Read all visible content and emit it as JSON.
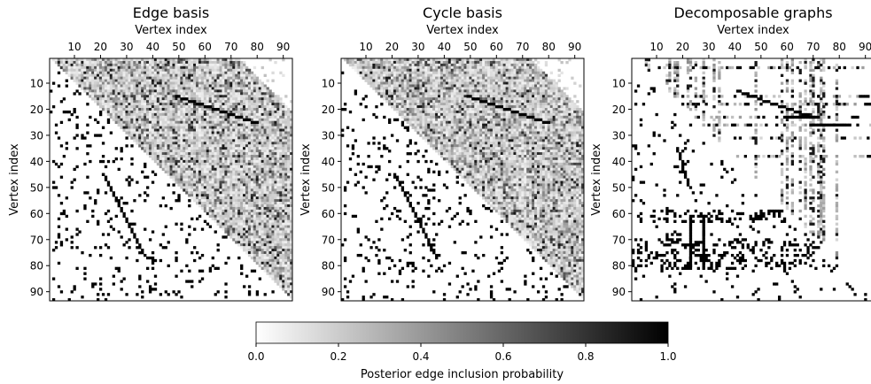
{
  "chart_data": {
    "type": "heatmap",
    "panels": [
      {
        "title": "Edge basis",
        "xlabel": "Vertex index",
        "ylabel": "Vertex index",
        "upper_triangle_pattern": "dense light-to-mid gray posterior probabilities with a dark near-diagonal chain",
        "lower_triangle_pattern": "sparse black cells marking true graph edges"
      },
      {
        "title": "Cycle basis",
        "xlabel": "Vertex index",
        "ylabel": "Vertex index",
        "upper_triangle_pattern": "dense light-to-mid gray posterior probabilities with a dark near-diagonal chain",
        "lower_triangle_pattern": "sparse black cells marking true graph edges"
      },
      {
        "title": "Decomposable graphs",
        "xlabel": "Vertex index",
        "ylabel": "Vertex index",
        "upper_triangle_pattern": "mostly white with dark vertical and horizontal bands near vertices 15-30, 60 and 70",
        "lower_triangle_pattern": "sparse black cells concentrated in horizontal bands near vertices 60-80"
      }
    ],
    "n_vertices": 93,
    "x_ticks": [
      10,
      20,
      30,
      40,
      50,
      60,
      70,
      80,
      90
    ],
    "y_ticks": [
      10,
      20,
      30,
      40,
      50,
      60,
      70,
      80,
      90
    ],
    "axis_range": [
      1,
      93
    ],
    "colormap": "greys (white = 0, black = 1)",
    "colorbar": {
      "label": "Posterior edge inclusion probability",
      "ticks": [
        "0.0",
        "0.2",
        "0.4",
        "0.6",
        "0.8",
        "1.0"
      ],
      "range": [
        0.0,
        1.0
      ],
      "orientation": "horizontal",
      "placement": "bottom-center"
    },
    "grid": false
  }
}
